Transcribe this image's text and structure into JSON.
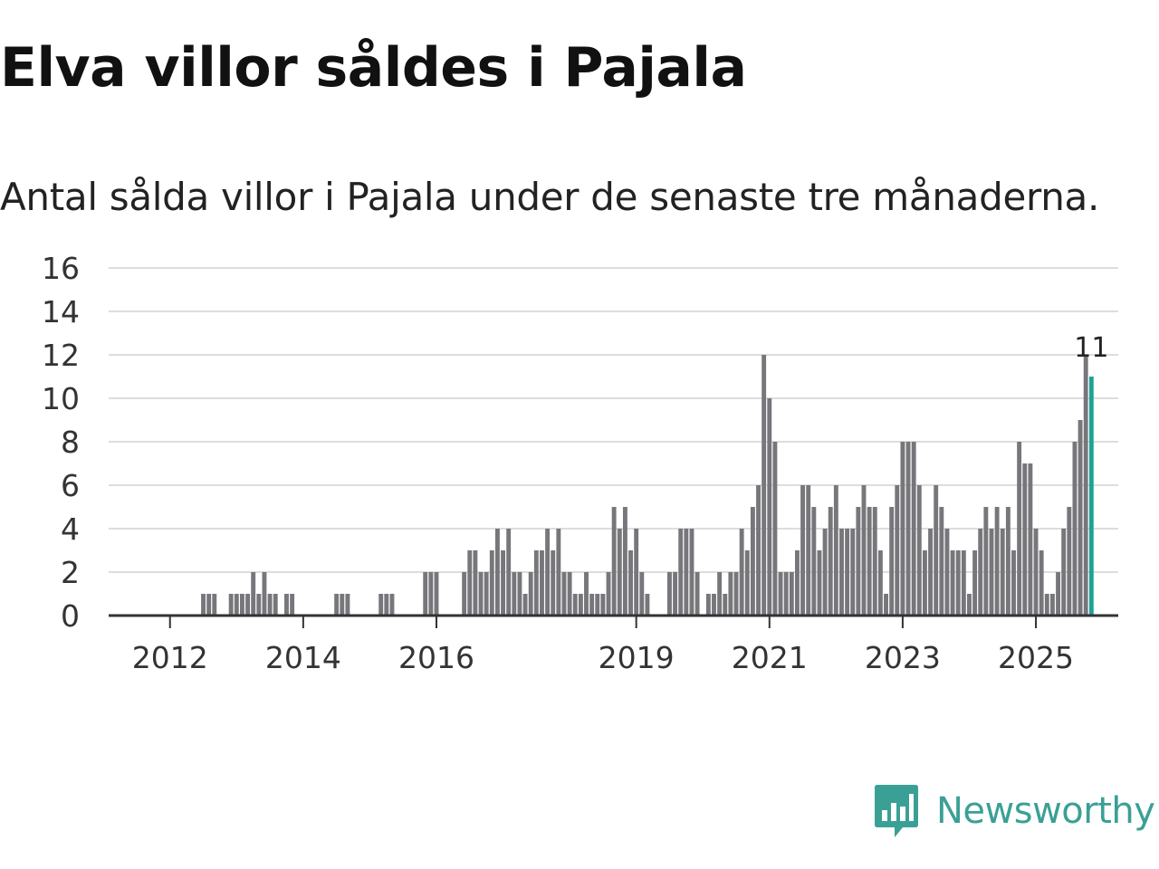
{
  "title": "Elva villor såldes i Pajala",
  "subtitle": "Antal sålda villor i Pajala under de senaste tre månaderna.",
  "logo": {
    "text": "Newsworthy",
    "icon": "newsworthy-chart-icon",
    "color": "#3aa095"
  },
  "colors": {
    "bar": "#77767b",
    "highlight": "#21a095",
    "grid": "#dddddd",
    "axis": "#333333"
  },
  "chart_data": {
    "type": "bar",
    "title": "Elva villor såldes i Pajala",
    "xlabel": "",
    "ylabel": "",
    "ylim": [
      0,
      16
    ],
    "yticks": [
      0,
      2,
      4,
      6,
      8,
      10,
      12,
      14,
      16
    ],
    "x_start": "2011-03",
    "xtick_labels": [
      {
        "label": "2012",
        "index": 10
      },
      {
        "label": "2014",
        "index": 34
      },
      {
        "label": "2016",
        "index": 58
      },
      {
        "label": "2019",
        "index": 94
      },
      {
        "label": "2021",
        "index": 118
      },
      {
        "label": "2023",
        "index": 142
      },
      {
        "label": "2025",
        "index": 166
      }
    ],
    "values": [
      0,
      0,
      0,
      0,
      0,
      0,
      0,
      0,
      0,
      0,
      0,
      0,
      0,
      0,
      0,
      0,
      1,
      1,
      1,
      0,
      0,
      1,
      1,
      1,
      1,
      2,
      1,
      2,
      1,
      1,
      0,
      1,
      1,
      0,
      0,
      0,
      0,
      0,
      0,
      0,
      1,
      1,
      1,
      0,
      0,
      0,
      0,
      0,
      1,
      1,
      1,
      0,
      0,
      0,
      0,
      0,
      2,
      2,
      2,
      0,
      0,
      0,
      0,
      2,
      3,
      3,
      2,
      2,
      3,
      4,
      3,
      4,
      2,
      2,
      1,
      2,
      3,
      3,
      4,
      3,
      4,
      2,
      2,
      1,
      1,
      2,
      1,
      1,
      1,
      2,
      5,
      4,
      5,
      3,
      4,
      2,
      1,
      0,
      0,
      0,
      2,
      2,
      4,
      4,
      4,
      2,
      0,
      1,
      1,
      2,
      1,
      2,
      2,
      4,
      3,
      5,
      6,
      12,
      10,
      8,
      2,
      2,
      2,
      3,
      6,
      6,
      5,
      3,
      4,
      5,
      6,
      4,
      4,
      4,
      5,
      6,
      5,
      5,
      3,
      1,
      5,
      6,
      8,
      8,
      8,
      6,
      3,
      4,
      6,
      5,
      4,
      3,
      3,
      3,
      1,
      3,
      4,
      5,
      4,
      5,
      4,
      5,
      3,
      8,
      7,
      7,
      4,
      3,
      1,
      1,
      2,
      4,
      5,
      8,
      9,
      12,
      11
    ],
    "highlight_last": true,
    "last_label": "11"
  }
}
